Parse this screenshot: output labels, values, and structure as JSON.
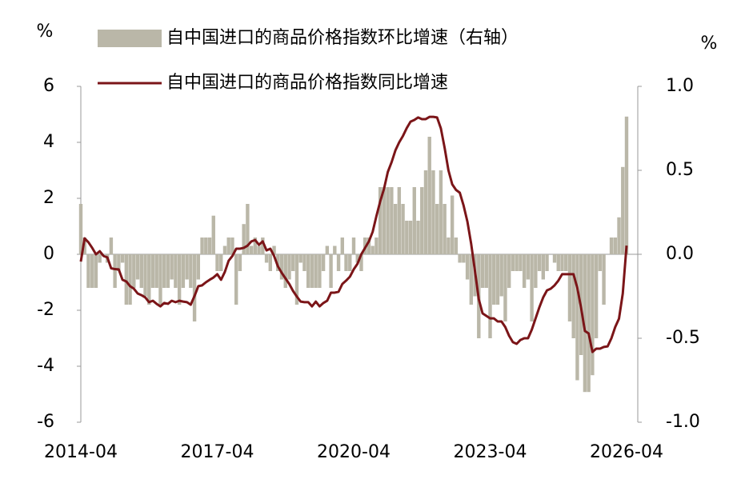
{
  "chart_data": {
    "type": "bar-line",
    "y_label": "%",
    "y2_label": "%",
    "x": [
      "2014-04",
      "2014-05",
      "2014-06",
      "2014-07",
      "2014-08",
      "2014-09",
      "2014-10",
      "2014-11",
      "2014-12",
      "2015-01",
      "2015-02",
      "2015-03",
      "2015-04",
      "2015-05",
      "2015-06",
      "2015-07",
      "2015-08",
      "2015-09",
      "2015-10",
      "2015-11",
      "2015-12",
      "2016-01",
      "2016-02",
      "2016-03",
      "2016-04",
      "2016-05",
      "2016-06",
      "2016-07",
      "2016-08",
      "2016-09",
      "2016-10",
      "2016-11",
      "2016-12",
      "2017-01",
      "2017-02",
      "2017-03",
      "2017-04",
      "2017-05",
      "2017-06",
      "2017-07",
      "2017-08",
      "2017-09",
      "2017-10",
      "2017-11",
      "2017-12",
      "2018-01",
      "2018-02",
      "2018-03",
      "2018-04",
      "2018-05",
      "2018-06",
      "2018-07",
      "2018-08",
      "2018-09",
      "2018-10",
      "2018-11",
      "2018-12",
      "2019-01",
      "2019-02",
      "2019-03",
      "2019-04",
      "2019-05",
      "2019-06",
      "2019-07",
      "2019-08",
      "2019-09",
      "2019-10",
      "2019-11",
      "2019-12",
      "2020-01",
      "2020-02",
      "2020-03",
      "2020-04",
      "2020-05",
      "2020-06",
      "2020-07",
      "2020-08",
      "2020-09",
      "2020-10",
      "2020-11",
      "2020-12",
      "2021-01",
      "2021-02",
      "2021-03",
      "2021-04",
      "2021-05",
      "2021-06",
      "2021-07",
      "2021-08",
      "2021-09",
      "2021-10",
      "2021-11",
      "2021-12",
      "2022-01",
      "2022-02",
      "2022-03",
      "2022-04",
      "2022-05",
      "2022-06",
      "2022-07",
      "2022-08",
      "2022-09",
      "2022-10",
      "2022-11",
      "2022-12",
      "2023-01",
      "2023-02",
      "2023-03",
      "2023-04",
      "2023-05",
      "2023-06",
      "2023-07",
      "2023-08",
      "2023-09",
      "2023-10",
      "2023-11",
      "2023-12",
      "2024-01",
      "2024-02",
      "2024-03",
      "2024-04",
      "2024-05",
      "2024-06",
      "2024-07",
      "2024-08",
      "2024-09",
      "2024-10",
      "2024-11",
      "2024-12",
      "2025-01",
      "2025-02",
      "2025-03",
      "2025-04",
      "2025-05",
      "2025-06",
      "2025-07",
      "2025-08",
      "2025-09",
      "2025-10",
      "2025-11",
      "2025-12",
      "2026-01",
      "2026-02",
      "2026-03",
      "2026-04"
    ],
    "xticks": [
      "2014-04",
      "2017-04",
      "2020-04",
      "2023-04",
      "2026-04"
    ],
    "ylim": [
      -6,
      6
    ],
    "yticks": [
      -6,
      -4,
      -2,
      0,
      2,
      4,
      6
    ],
    "y2lim": [
      -1,
      1
    ],
    "y2ticks": [
      {
        "value": -1,
        "label": "-1.0"
      },
      -0.5,
      {
        "value": 0,
        "label": "0.0"
      },
      0.5,
      {
        "value": 1,
        "label": "1.0"
      }
    ],
    "series": [
      {
        "name": "自中国进口的商品价格指数环比增速（右轴）",
        "type": "bar",
        "axis": "y2",
        "color": "#bab7a8",
        "values": [
          0.3,
          0.1,
          -0.2,
          -0.2,
          -0.2,
          -0.05,
          0.0,
          -0.05,
          0.1,
          -0.2,
          -0.1,
          -0.05,
          -0.3,
          -0.3,
          -0.2,
          -0.15,
          -0.2,
          -0.25,
          -0.3,
          -0.2,
          -0.2,
          -0.3,
          -0.2,
          -0.2,
          -0.15,
          -0.2,
          -0.3,
          -0.2,
          -0.15,
          -0.2,
          -0.4,
          -0.15,
          0.1,
          0.1,
          0.1,
          0.23,
          -0.1,
          -0.1,
          0.05,
          0.1,
          0.1,
          -0.3,
          -0.1,
          0.18,
          0.3,
          0.05,
          0.1,
          0.05,
          0.1,
          -0.05,
          -0.1,
          0.05,
          -0.1,
          -0.15,
          -0.2,
          -0.15,
          -0.1,
          -0.3,
          -0.05,
          -0.1,
          -0.2,
          -0.2,
          -0.2,
          -0.2,
          -0.1,
          0.05,
          -0.2,
          0.05,
          -0.1,
          0.1,
          -0.1,
          -0.1,
          0.1,
          -0.05,
          -0.1,
          0.1,
          0.1,
          0.05,
          0.1,
          0.4,
          0.4,
          0.4,
          0.4,
          0.3,
          0.4,
          0.3,
          0.2,
          0.2,
          0.4,
          0.2,
          0.4,
          0.5,
          0.7,
          0.5,
          0.3,
          0.5,
          0.3,
          0.1,
          0.35,
          0.1,
          -0.05,
          -0.05,
          -0.15,
          -0.3,
          -0.25,
          -0.5,
          -0.2,
          -0.2,
          -0.5,
          -0.3,
          -0.3,
          -0.25,
          -0.4,
          -0.2,
          -0.1,
          -0.1,
          -0.1,
          -0.2,
          -0.15,
          -0.4,
          -0.2,
          -0.1,
          -0.15,
          -0.1,
          0.0,
          -0.05,
          -0.1,
          -0.1,
          -0.1,
          -0.4,
          -0.5,
          -0.75,
          -0.6,
          -0.82,
          -0.82,
          -0.72,
          -0.5,
          -0.1,
          -0.3,
          0.0,
          0.1,
          0.1,
          0.22,
          0.52,
          0.82
        ]
      },
      {
        "name": "自中国进口的商品价格指数同比增速",
        "type": "line",
        "axis": "y",
        "color": "#7b1518",
        "values": [
          -0.26,
          0.57,
          0.43,
          0.23,
          0.0,
          0.11,
          -0.06,
          -0.11,
          -0.5,
          -0.53,
          -0.54,
          -0.91,
          -0.97,
          -1.14,
          -1.23,
          -1.4,
          -1.46,
          -1.54,
          -1.71,
          -1.66,
          -1.77,
          -1.86,
          -1.74,
          -1.77,
          -1.66,
          -1.71,
          -1.66,
          -1.69,
          -1.71,
          -1.8,
          -1.49,
          -1.14,
          -1.11,
          -1.0,
          -0.91,
          -0.83,
          -0.71,
          -0.91,
          -0.63,
          -0.23,
          -0.06,
          0.2,
          0.2,
          0.23,
          0.31,
          0.46,
          0.51,
          0.34,
          0.46,
          0.14,
          0.2,
          -0.06,
          -0.43,
          -0.66,
          -0.86,
          -1.06,
          -1.31,
          -1.51,
          -1.69,
          -1.71,
          -1.71,
          -1.86,
          -1.69,
          -1.86,
          -1.74,
          -1.66,
          -1.37,
          -1.37,
          -1.34,
          -1.06,
          -0.94,
          -0.8,
          -0.54,
          -0.34,
          0.0,
          0.23,
          0.46,
          0.8,
          1.37,
          1.89,
          2.34,
          2.94,
          3.29,
          3.71,
          4.0,
          4.23,
          4.51,
          4.74,
          4.8,
          4.89,
          4.83,
          4.83,
          4.91,
          4.91,
          4.89,
          4.5,
          3.8,
          3.0,
          2.5,
          2.3,
          2.2,
          1.74,
          1.17,
          0.37,
          -0.6,
          -1.6,
          -2.11,
          -2.2,
          -2.29,
          -2.29,
          -2.4,
          -2.4,
          -2.6,
          -2.91,
          -3.14,
          -3.2,
          -3.06,
          -3.0,
          -3.0,
          -2.69,
          -2.29,
          -1.89,
          -1.54,
          -1.29,
          -1.23,
          -1.11,
          -0.94,
          -0.71,
          -0.71,
          -0.71,
          -0.71,
          -1.2,
          -1.91,
          -2.74,
          -2.83,
          -3.49,
          -3.37,
          -3.37,
          -3.31,
          -3.29,
          -3.0,
          -2.6,
          -2.3,
          -1.4,
          0.31
        ]
      }
    ]
  }
}
